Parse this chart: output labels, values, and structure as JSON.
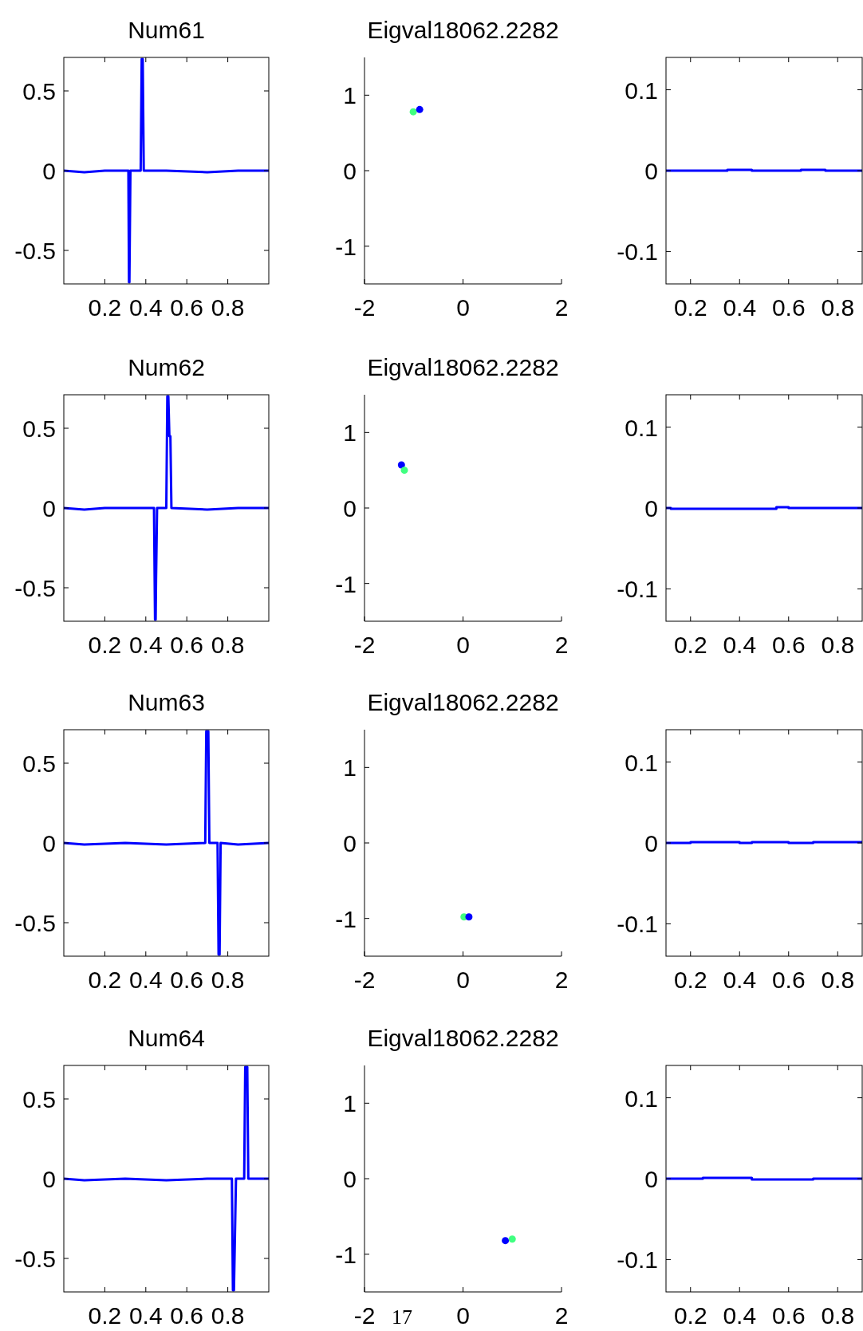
{
  "chart_data": [
    {
      "type": "line",
      "title": "Num61",
      "xlim": [
        0,
        1
      ],
      "xticks": [
        0.2,
        0.4,
        0.6,
        0.8
      ],
      "ylim": [
        -0.71,
        0.71
      ],
      "yticks": [
        -0.5,
        0,
        0.5
      ],
      "series": [
        {
          "color": "#0000ff",
          "x": [
            0,
            0.1,
            0.2,
            0.31,
            0.315,
            0.318,
            0.32,
            0.325,
            0.37,
            0.375,
            0.38,
            0.385,
            0.39,
            0.5,
            0.7,
            0.85,
            1
          ],
          "values": [
            0,
            -0.01,
            0,
            0,
            0,
            -0.7,
            -0.7,
            0,
            0,
            0,
            0.7,
            0.7,
            0,
            0,
            -0.01,
            0,
            0
          ]
        }
      ]
    },
    {
      "type": "scatter",
      "title": "Eigval18062.2282",
      "xlim": [
        -2,
        2
      ],
      "xticks": [
        -2,
        0,
        2
      ],
      "ylim": [
        -1.5,
        1.5
      ],
      "yticks": [
        -1,
        0,
        1
      ],
      "marker": "circle",
      "series": [
        {
          "color": "#40ff80",
          "x": [
            -1.01
          ],
          "values": [
            0.78
          ]
        },
        {
          "color": "#0000ff",
          "x": [
            -0.88
          ],
          "values": [
            0.81
          ]
        }
      ]
    },
    {
      "type": "line",
      "xlim": [
        0.1,
        0.9
      ],
      "xticks": [
        0.2,
        0.4,
        0.6,
        0.8
      ],
      "ylim": [
        -0.14,
        0.14
      ],
      "yticks": [
        -0.1,
        0,
        0.1
      ],
      "series": [
        {
          "color": "#0000ff",
          "x": [
            0.1,
            0.35,
            0.35,
            0.45,
            0.45,
            0.65,
            0.65,
            0.75,
            0.75,
            0.9
          ],
          "values": [
            0,
            0,
            0.001,
            0.001,
            0,
            0,
            0.001,
            0.001,
            0,
            0
          ]
        }
      ]
    },
    {
      "type": "line",
      "title": "Num62",
      "xlim": [
        0,
        1
      ],
      "xticks": [
        0.2,
        0.4,
        0.6,
        0.8
      ],
      "ylim": [
        -0.71,
        0.71
      ],
      "yticks": [
        -0.5,
        0,
        0.5
      ],
      "series": [
        {
          "color": "#0000ff",
          "x": [
            0,
            0.1,
            0.2,
            0.3,
            0.44,
            0.445,
            0.448,
            0.45,
            0.455,
            0.5,
            0.505,
            0.51,
            0.515,
            0.52,
            0.525,
            0.7,
            0.85,
            1
          ],
          "values": [
            0,
            -0.01,
            0,
            0,
            0,
            -0.7,
            -0.7,
            -0.45,
            0,
            0,
            0.7,
            0.7,
            0.45,
            0.45,
            0,
            -0.01,
            0,
            0
          ]
        }
      ]
    },
    {
      "type": "scatter",
      "title": "Eigval18062.2282",
      "xlim": [
        -2,
        2
      ],
      "xticks": [
        -2,
        0,
        2
      ],
      "ylim": [
        -1.5,
        1.5
      ],
      "yticks": [
        -1,
        0,
        1
      ],
      "marker": "circle",
      "series": [
        {
          "color": "#0000ff",
          "x": [
            -1.25
          ],
          "values": [
            0.57
          ]
        },
        {
          "color": "#40ff80",
          "x": [
            -1.19
          ],
          "values": [
            0.5
          ]
        }
      ]
    },
    {
      "type": "line",
      "xlim": [
        0.1,
        0.9
      ],
      "xticks": [
        0.2,
        0.4,
        0.6,
        0.8
      ],
      "ylim": [
        -0.14,
        0.14
      ],
      "yticks": [
        -0.1,
        0,
        0.1
      ],
      "series": [
        {
          "color": "#0000ff",
          "x": [
            0.1,
            0.12,
            0.12,
            0.55,
            0.55,
            0.6,
            0.6,
            0.9
          ],
          "values": [
            0,
            0,
            -0.001,
            -0.001,
            0.001,
            0.001,
            0,
            0
          ]
        }
      ]
    },
    {
      "type": "line",
      "title": "Num63",
      "xlim": [
        0,
        1
      ],
      "xticks": [
        0.2,
        0.4,
        0.6,
        0.8
      ],
      "ylim": [
        -0.71,
        0.71
      ],
      "yticks": [
        -0.5,
        0,
        0.5
      ],
      "series": [
        {
          "color": "#0000ff",
          "x": [
            0,
            0.1,
            0.3,
            0.5,
            0.69,
            0.695,
            0.7,
            0.705,
            0.71,
            0.75,
            0.755,
            0.76,
            0.765,
            0.85,
            1
          ],
          "values": [
            0,
            -0.01,
            0,
            -0.01,
            0,
            0.7,
            0.7,
            0.7,
            0,
            0,
            -0.7,
            -0.7,
            0,
            -0.01,
            0
          ]
        }
      ]
    },
    {
      "type": "scatter",
      "title": "Eigval18062.2282",
      "xlim": [
        -2,
        2
      ],
      "xticks": [
        -2,
        0,
        2
      ],
      "ylim": [
        -1.5,
        1.5
      ],
      "yticks": [
        -1,
        0,
        1
      ],
      "marker": "circle",
      "series": [
        {
          "color": "#40ff80",
          "x": [
            0.02
          ],
          "values": [
            -0.98
          ]
        },
        {
          "color": "#0000ff",
          "x": [
            0.12
          ],
          "values": [
            -0.98
          ]
        }
      ]
    },
    {
      "type": "line",
      "xlim": [
        0.1,
        0.9
      ],
      "xticks": [
        0.2,
        0.4,
        0.6,
        0.8
      ],
      "ylim": [
        -0.14,
        0.14
      ],
      "yticks": [
        -0.1,
        0,
        0.1
      ],
      "series": [
        {
          "color": "#0000ff",
          "x": [
            0.1,
            0.2,
            0.2,
            0.4,
            0.4,
            0.45,
            0.45,
            0.6,
            0.6,
            0.7,
            0.7,
            0.9
          ],
          "values": [
            0,
            0,
            0.001,
            0.001,
            0,
            0,
            0.001,
            0.001,
            0,
            0,
            0.001,
            0.001
          ]
        }
      ]
    },
    {
      "type": "line",
      "title": "Num64",
      "xlim": [
        0,
        1
      ],
      "xticks": [
        0.2,
        0.4,
        0.6,
        0.8
      ],
      "ylim": [
        -0.71,
        0.71
      ],
      "yticks": [
        -0.5,
        0,
        0.5
      ],
      "series": [
        {
          "color": "#0000ff",
          "x": [
            0,
            0.1,
            0.3,
            0.5,
            0.7,
            0.82,
            0.825,
            0.83,
            0.835,
            0.84,
            0.88,
            0.885,
            0.89,
            0.895,
            0.9,
            1
          ],
          "values": [
            0,
            -0.01,
            0,
            -0.01,
            0,
            0,
            -0.7,
            -0.7,
            -0.35,
            0,
            0,
            0.7,
            0.7,
            0.7,
            0,
            0
          ]
        }
      ]
    },
    {
      "type": "scatter",
      "title": "Eigval18062.2282",
      "xlim": [
        -2,
        2
      ],
      "xticks": [
        -2,
        0,
        2
      ],
      "ylim": [
        -1.5,
        1.5
      ],
      "yticks": [
        -1,
        0,
        1
      ],
      "marker": "circle",
      "annotations": [
        "17"
      ],
      "series": [
        {
          "color": "#0000ff",
          "x": [
            0.86
          ],
          "values": [
            -0.82
          ]
        },
        {
          "color": "#40ff80",
          "x": [
            1
          ],
          "values": [
            -0.8
          ]
        }
      ]
    },
    {
      "type": "line",
      "xlim": [
        0.1,
        0.9
      ],
      "xticks": [
        0.2,
        0.4,
        0.6,
        0.8
      ],
      "ylim": [
        -0.14,
        0.14
      ],
      "yticks": [
        -0.1,
        0,
        0.1
      ],
      "series": [
        {
          "color": "#0000ff",
          "x": [
            0.1,
            0.25,
            0.25,
            0.45,
            0.45,
            0.7,
            0.7,
            0.9
          ],
          "values": [
            0,
            0,
            0.001,
            0.001,
            -0.001,
            -0.001,
            0,
            0
          ]
        }
      ]
    }
  ]
}
